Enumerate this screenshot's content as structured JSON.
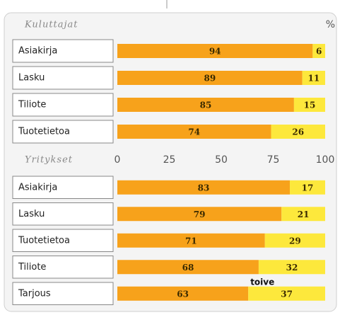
{
  "chart_data": [
    {
      "type": "stacked-bar",
      "title": "Kuluttajat",
      "axis_label": "%",
      "categories": [
        "Asiakirja",
        "Lasku",
        "Tiliote",
        "Tuotetietoa"
      ],
      "series": [
        {
          "color": "#f7a21b",
          "values": [
            94,
            89,
            85,
            74
          ]
        },
        {
          "color": "#fde83c",
          "values": [
            6,
            11,
            15,
            26
          ]
        }
      ],
      "xlim": [
        0,
        100
      ]
    },
    {
      "type": "stacked-bar",
      "title": "Yritykset",
      "categories": [
        "Asiakirja",
        "Lasku",
        "Tuotetietoa",
        "Tiliote",
        "Tarjous"
      ],
      "series": [
        {
          "color": "#f7a21b",
          "values": [
            83,
            79,
            71,
            68,
            63
          ]
        },
        {
          "color": "#fde83c",
          "values": [
            17,
            21,
            29,
            32,
            37
          ]
        }
      ],
      "xlim": [
        0,
        100
      ],
      "xticks": [
        0,
        25,
        50,
        75,
        100
      ],
      "annotation": "toive"
    }
  ]
}
